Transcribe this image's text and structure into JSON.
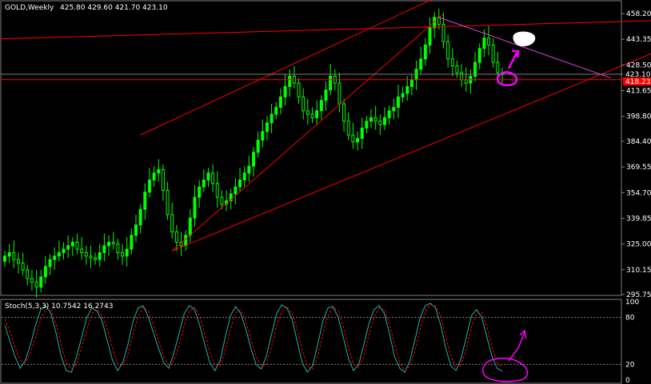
{
  "header": {
    "symbol_label": "GOLD,Weekly",
    "ohlc_text": "425.80 429.60 421.70 423.10"
  },
  "price_panel": {
    "last_price_label": "423.10",
    "support_label": "418.23",
    "colors": {
      "background": "#000000",
      "frame": "#808080",
      "bull_candle": "#00ff00",
      "trend_lines": "#ff0000",
      "upper_resistance": "#e040e0",
      "annotation": "#ff00ff",
      "price_tag": "#ff0000"
    }
  },
  "stoch_panel": {
    "title": "Stoch(5,3,3) 10.7542 16.2743",
    "ticks": [
      "100",
      "80",
      "20",
      "0"
    ],
    "colors": {
      "main_line": "#20b2aa",
      "signal_line": "#ff0000",
      "levels": "#808080"
    }
  },
  "chart_data": [
    {
      "type": "candlestick",
      "title": "GOLD,Weekly",
      "y_ticks": [
        458.2,
        443.35,
        428.5,
        413.65,
        398.8,
        384.4,
        369.55,
        354.7,
        339.85,
        325.0,
        310.15,
        295.75
      ],
      "ylim": [
        295.75,
        458.2
      ],
      "last_price": 423.1,
      "horizontal_line": 418.23,
      "ohlc_last": {
        "open": 425.8,
        "high": 429.6,
        "low": 421.7,
        "close": 423.1
      },
      "close_series": [
        318,
        320,
        316,
        314,
        310,
        305,
        303,
        300,
        306,
        312,
        316,
        318,
        320,
        322,
        324,
        326,
        322,
        320,
        318,
        317,
        316,
        320,
        324,
        326,
        325,
        320,
        318,
        322,
        330,
        336,
        345,
        355,
        362,
        366,
        368,
        356,
        342,
        332,
        326,
        324,
        330,
        340,
        352,
        358,
        362,
        366,
        360,
        352,
        348,
        350,
        354,
        358,
        362,
        366,
        370,
        378,
        385,
        390,
        395,
        400,
        404,
        410,
        416,
        422,
        418,
        410,
        402,
        400,
        398,
        402,
        408,
        414,
        422,
        418,
        406,
        396,
        388,
        384,
        386,
        392,
        396,
        398,
        396,
        394,
        398,
        402,
        404,
        410,
        412,
        416,
        420,
        426,
        432,
        440,
        450,
        456,
        452,
        442,
        432,
        428,
        424,
        420,
        418,
        422,
        430,
        438,
        444,
        440,
        430,
        424,
        423
      ]
    },
    {
      "type": "line",
      "title": "Stoch(5,3,3)",
      "ylim": [
        0,
        100
      ],
      "levels": [
        80,
        20
      ],
      "series": [
        {
          "name": "10.7542",
          "values": [
            70,
            50,
            30,
            15,
            25,
            45,
            70,
            90,
            95,
            85,
            60,
            30,
            12,
            10,
            30,
            55,
            80,
            92,
            88,
            75,
            50,
            25,
            12,
            22,
            45,
            75,
            92,
            95,
            80,
            60,
            40,
            22,
            15,
            35,
            60,
            85,
            95,
            90,
            70,
            45,
            22,
            12,
            25,
            55,
            82,
            94,
            85,
            65,
            40,
            20,
            14,
            30,
            58,
            85,
            96,
            92,
            78,
            50,
            22,
            10,
            18,
            45,
            75,
            92,
            94,
            80,
            55,
            28,
            12,
            20,
            45,
            72,
            90,
            95,
            85,
            60,
            30,
            15,
            10,
            25,
            52,
            80,
            95,
            98,
            92,
            70,
            40,
            18,
            12,
            28,
            55,
            82,
            90,
            80,
            55,
            30,
            15,
            11
          ]
        },
        {
          "name": "16.2743",
          "values": [
            78,
            62,
            42,
            25,
            22,
            35,
            55,
            78,
            90,
            90,
            72,
            45,
            22,
            14,
            20,
            42,
            65,
            85,
            90,
            82,
            65,
            40,
            20,
            18,
            32,
            58,
            82,
            93,
            88,
            70,
            50,
            30,
            18,
            25,
            45,
            70,
            88,
            93,
            82,
            58,
            35,
            18,
            18,
            38,
            65,
            86,
            90,
            75,
            52,
            30,
            17,
            20,
            42,
            70,
            88,
            94,
            85,
            65,
            38,
            18,
            14,
            30,
            58,
            82,
            93,
            88,
            68,
            42,
            20,
            16,
            30,
            58,
            80,
            92,
            90,
            72,
            45,
            22,
            12,
            18,
            38,
            65,
            88,
            96,
            95,
            82,
            55,
            30,
            15,
            20,
            40,
            68,
            85,
            86,
            68,
            42,
            22,
            16
          ]
        }
      ]
    }
  ]
}
